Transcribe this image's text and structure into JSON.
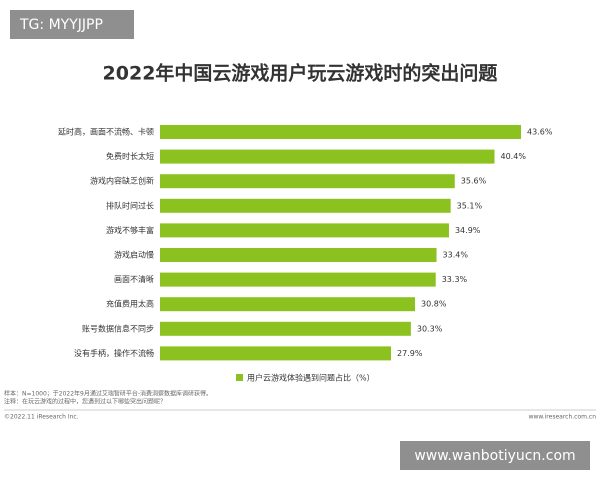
{
  "watermark_top": "TG: MYYJJPP",
  "chart_data": {
    "type": "bar",
    "orientation": "horizontal",
    "title": "2022年中国云游戏用户玩云游戏时的突出问题",
    "categories": [
      "延时高，画面不流畅、卡顿",
      "免费时长太短",
      "游戏内容缺乏创新",
      "排队时间过长",
      "游戏不够丰富",
      "游戏启动慢",
      "画面不清晰",
      "充值费用太高",
      "账号数据信息不同步",
      "没有手柄，操作不流畅"
    ],
    "series": [
      {
        "name": "用户云游戏体验遇到问题占比（%）",
        "color": "#8cc21f",
        "values": [
          43.6,
          40.4,
          35.6,
          35.1,
          34.9,
          33.4,
          33.3,
          30.8,
          30.3,
          27.9
        ],
        "value_labels": [
          "43.6%",
          "40.4%",
          "35.6%",
          "35.1%",
          "34.9%",
          "33.4%",
          "33.3%",
          "30.8%",
          "30.3%",
          "27.9%"
        ]
      }
    ]
  },
  "notes": [
    "样本：N=1000；于2022年9月通过艾瑞智研平台-消费洞察数据库调研获得。",
    "注释：在玩云游戏的过程中，您遇到过以下哪些突出问题呢？"
  ],
  "footer": {
    "copyright": "©2022.11 iResearch Inc.",
    "url": "www.iresearch.com.cn"
  },
  "watermark_bottom": "www.wanbotiyucn.com"
}
